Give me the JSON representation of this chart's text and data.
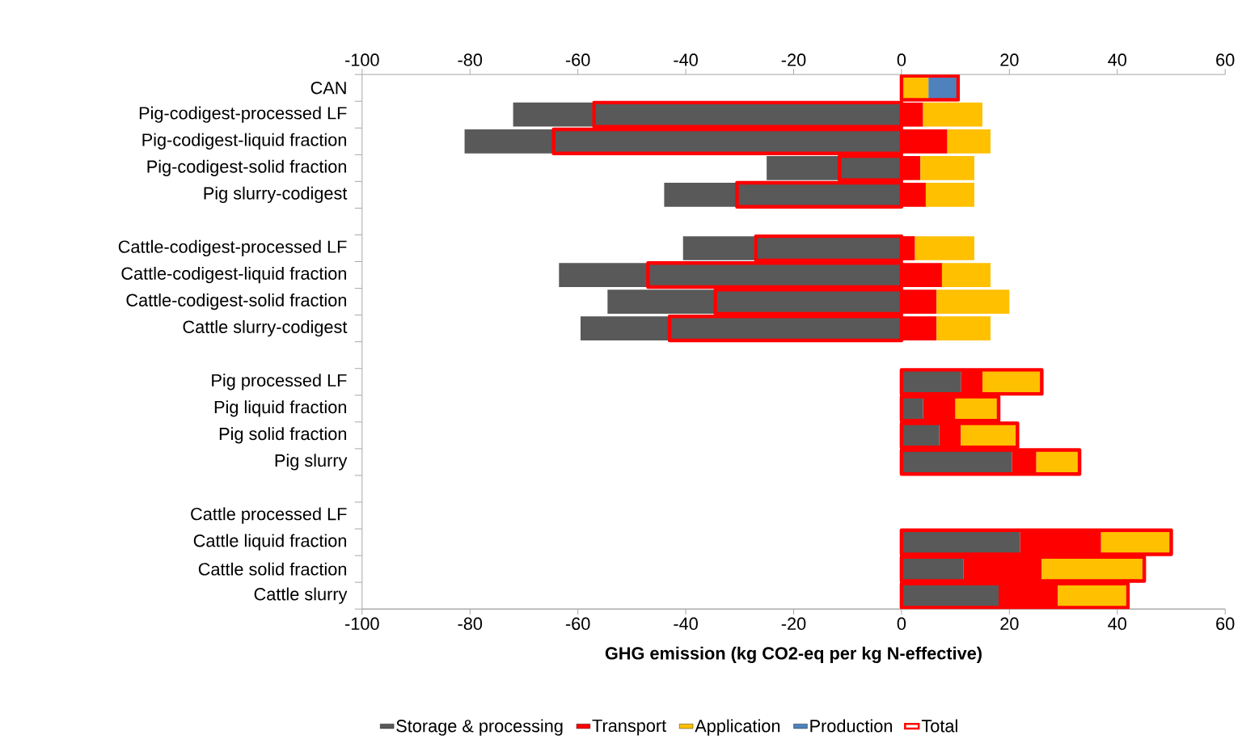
{
  "chart_data": [
    {
      "type": "bar",
      "orientation": "horizontal",
      "stacked": true,
      "categories": [
        "CAN",
        "Pig-codigest-processed LF",
        "Pig-codigest-liquid fraction",
        "Pig-codigest-solid fraction",
        "Pig slurry-codigest",
        null,
        "Cattle-codigest-processed LF",
        "Cattle-codigest-liquid fraction",
        "Cattle-codigest-solid fraction",
        "Cattle slurry-codigest",
        null,
        "Pig processed LF",
        "Pig liquid fraction",
        "Pig solid fraction",
        "Pig slurry",
        null,
        "Cattle processed LF",
        "Cattle liquid fraction",
        "Cattle solid fraction",
        "Cattle slurry"
      ],
      "series": [
        {
          "name": "Storage & processing",
          "color": "#595959",
          "values": [
            null,
            -72,
            -81,
            -25,
            -44,
            null,
            -40.5,
            -63.5,
            -54.5,
            -59.5,
            null,
            11,
            4,
            7,
            20.5,
            null,
            null,
            22,
            11.5,
            18
          ]
        },
        {
          "name": "Transport",
          "color": "#ff0000",
          "values": [
            null,
            4,
            8.5,
            3.5,
            4.5,
            null,
            2.5,
            7.5,
            6.5,
            6.5,
            null,
            4,
            6,
            4,
            4.5,
            null,
            null,
            15,
            14.5,
            11
          ]
        },
        {
          "name": "Application",
          "color": "#ffc000",
          "values": [
            5,
            11,
            8,
            10,
            9,
            null,
            11,
            9,
            13.5,
            10,
            null,
            11,
            8,
            10.5,
            8,
            null,
            null,
            13,
            19,
            13
          ]
        },
        {
          "name": "Production",
          "color": "#4f81bd",
          "values": [
            5.5,
            null,
            null,
            null,
            null,
            null,
            null,
            null,
            null,
            null,
            null,
            null,
            null,
            null,
            null,
            null,
            null,
            null,
            null,
            null
          ]
        }
      ],
      "xlabel": "GHG emission (kg CO2-eq per kg N-effective)",
      "xlim": [
        -100,
        60
      ],
      "xticks": [
        -100,
        -80,
        -60,
        -40,
        -20,
        0,
        20,
        40,
        60
      ],
      "x2lim": [
        -100,
        60
      ],
      "x2ticks": [
        -100,
        -80,
        -60,
        -40,
        -20,
        0,
        20,
        40,
        60
      ],
      "legend": "bottom"
    },
    {
      "type": "bar",
      "orientation": "horizontal",
      "tick_labels": false,
      "categories": [
        null,
        null,
        null,
        null,
        null,
        null,
        null,
        null,
        null,
        null,
        null,
        null,
        null,
        null,
        null,
        null,
        null,
        null,
        null,
        null
      ],
      "series": [
        {
          "name": "Total",
          "color": "#ff0000",
          "values": [
            10.5,
            -57,
            -64.5,
            -11.5,
            -30.5,
            null,
            -27,
            -47,
            -34.5,
            -43,
            null,
            26,
            18,
            21.5,
            33,
            null,
            null,
            50,
            45,
            42
          ]
        }
      ],
      "xlim": [
        -100,
        60
      ],
      "legend": "bottom"
    }
  ]
}
